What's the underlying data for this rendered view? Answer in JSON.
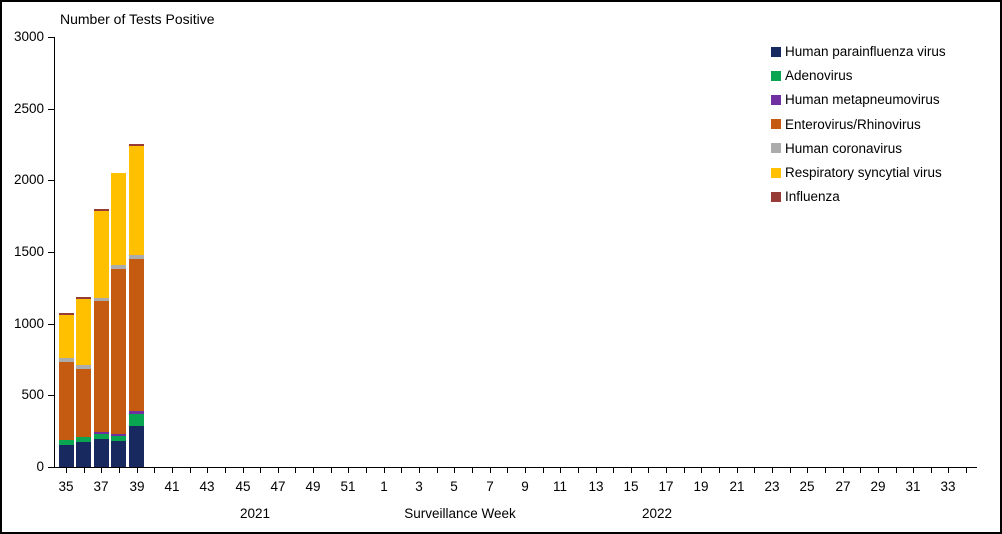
{
  "chart_data": {
    "type": "bar",
    "stacked": true,
    "title": "Number of Tests Positive",
    "xlabel": "Surveillance Week",
    "year_labels": [
      "2021",
      "2022"
    ],
    "ylim": [
      0,
      3000
    ],
    "grid": false,
    "legend_position": "top-right",
    "y_tick_labels": [
      "0",
      "500",
      "1000",
      "1500",
      "2000",
      "2500",
      "3000"
    ],
    "x_tick_labels": [
      "35",
      "37",
      "39",
      "41",
      "43",
      "45",
      "47",
      "49",
      "51",
      "1",
      "3",
      "5",
      "7",
      "9",
      "11",
      "13",
      "15",
      "17",
      "19",
      "21",
      "23",
      "25",
      "27",
      "29",
      "31",
      "33"
    ],
    "weeks_2021": {
      "first": 35,
      "last": 52
    },
    "weeks_2022": {
      "first": 1,
      "last": 34
    },
    "categories": [
      "2021 Week 35",
      "2021 Week 36",
      "2021 Week 37",
      "2021 Week 38",
      "2021 Week 39"
    ],
    "series": [
      {
        "name": "Human parainfluenza virus",
        "color": "#17295E",
        "values": [
          155,
          174,
          197,
          181,
          286
        ]
      },
      {
        "name": "Adenovirus",
        "color": "#0AA550",
        "values": [
          35,
          35,
          35,
          33,
          84
        ]
      },
      {
        "name": "Human metapneumovirus",
        "color": "#7030A0",
        "values": [
          0,
          0,
          14,
          14,
          21
        ]
      },
      {
        "name": "Enterovirus/Rhinovirus",
        "color": "#C55A11",
        "values": [
          543,
          477,
          913,
          1156,
          1059
        ]
      },
      {
        "name": "Human coronavirus",
        "color": "#ACACAC",
        "values": [
          28,
          24,
          21,
          28,
          28
        ]
      },
      {
        "name": "Respiratory syncytial virus",
        "color": "#FFC000",
        "values": [
          300,
          463,
          606,
          642,
          761
        ]
      },
      {
        "name": "Influenza",
        "color": "#963B35",
        "values": [
          16,
          16,
          14,
          0,
          16
        ]
      }
    ],
    "totals": [
      1077,
      1189,
      1800,
      2054,
      2255
    ]
  }
}
